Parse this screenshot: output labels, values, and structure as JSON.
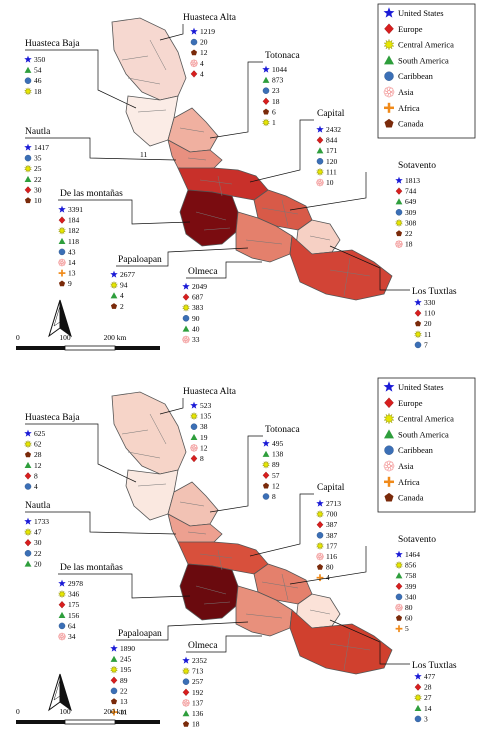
{
  "legend": [
    {
      "label": "United States",
      "icon": "star-icon",
      "color": "#1a1ad6"
    },
    {
      "label": "Europe",
      "icon": "diamond-icon",
      "color": "#d81e1e"
    },
    {
      "label": "Central America",
      "icon": "sunburst-icon",
      "color": "#e6e600"
    },
    {
      "label": "South America",
      "icon": "triangle-icon",
      "color": "#2e9e3c"
    },
    {
      "label": "Caribbean",
      "icon": "circle-icon",
      "color": "#3b6fb6"
    },
    {
      "label": "Asia",
      "icon": "flower-icon",
      "color": "#f4a6a6"
    },
    {
      "label": "Africa",
      "icon": "cross-icon",
      "color": "#f08a1a"
    },
    {
      "label": "Canada",
      "icon": "pentagon-icon",
      "color": "#7a2a0a"
    }
  ],
  "scale_bar": {
    "ticks": [
      "0",
      "100",
      "200 km"
    ]
  },
  "map_marker": "11",
  "panels": [
    {
      "regions": [
        {
          "name": "Huasteca Baja",
          "items": [
            [
              "star",
              "350"
            ],
            [
              "triangle",
              "54"
            ],
            [
              "circle",
              "46"
            ],
            [
              "sun",
              "18"
            ]
          ]
        },
        {
          "name": "Huasteca Alta",
          "items": [
            [
              "star",
              "1219"
            ],
            [
              "circle",
              "20"
            ],
            [
              "pentagon",
              "12"
            ],
            [
              "flower",
              "4"
            ],
            [
              "diamond",
              "4"
            ]
          ]
        },
        {
          "name": "Totonaca",
          "items": [
            [
              "star",
              "1044"
            ],
            [
              "triangle",
              "873"
            ],
            [
              "circle",
              "23"
            ],
            [
              "diamond",
              "18"
            ],
            [
              "pentagon",
              "6"
            ],
            [
              "sun",
              "1"
            ]
          ]
        },
        {
          "name": "Capital",
          "items": [
            [
              "star",
              "2432"
            ],
            [
              "diamond",
              "844"
            ],
            [
              "triangle",
              "171"
            ],
            [
              "circle",
              "120"
            ],
            [
              "sun",
              "111"
            ],
            [
              "flower",
              "10"
            ]
          ]
        },
        {
          "name": "Nautla",
          "items": [
            [
              "star",
              "1417"
            ],
            [
              "circle",
              "35"
            ],
            [
              "sun",
              "25"
            ],
            [
              "triangle",
              "22"
            ],
            [
              "diamond",
              "30"
            ],
            [
              "pentagon",
              "10"
            ]
          ]
        },
        {
          "name": "Sotavento",
          "items": [
            [
              "star",
              "1813"
            ],
            [
              "diamond",
              "744"
            ],
            [
              "triangle",
              "649"
            ],
            [
              "circle",
              "309"
            ],
            [
              "sun",
              "308"
            ],
            [
              "pentagon",
              "22"
            ],
            [
              "flower",
              "18"
            ]
          ]
        },
        {
          "name": "De las montañas",
          "items": [
            [
              "star",
              "3391"
            ],
            [
              "diamond",
              "184"
            ],
            [
              "sun",
              "182"
            ],
            [
              "triangle",
              "118"
            ],
            [
              "circle",
              "43"
            ],
            [
              "flower",
              "14"
            ],
            [
              "cross",
              "13"
            ],
            [
              "pentagon",
              "9"
            ]
          ]
        },
        {
          "name": "Papaloapan",
          "items": [
            [
              "star",
              "2677"
            ],
            [
              "sun",
              "94"
            ],
            [
              "triangle",
              "4"
            ],
            [
              "pentagon",
              "2"
            ]
          ]
        },
        {
          "name": "Olmeca",
          "items": [
            [
              "star",
              "2049"
            ],
            [
              "diamond",
              "687"
            ],
            [
              "sun",
              "383"
            ],
            [
              "circle",
              "90"
            ],
            [
              "triangle",
              "40"
            ],
            [
              "flower",
              "33"
            ]
          ]
        },
        {
          "name": "Los Tuxtlas",
          "items": [
            [
              "star",
              "330"
            ],
            [
              "diamond",
              "110"
            ],
            [
              "pentagon",
              "20"
            ],
            [
              "sun",
              "11"
            ],
            [
              "circle",
              "7"
            ]
          ]
        }
      ]
    },
    {
      "regions": [
        {
          "name": "Huasteca Baja",
          "items": [
            [
              "star",
              "625"
            ],
            [
              "sun",
              "62"
            ],
            [
              "pentagon",
              "28"
            ],
            [
              "triangle",
              "12"
            ],
            [
              "diamond",
              "8"
            ],
            [
              "circle",
              "4"
            ]
          ]
        },
        {
          "name": "Huasteca Alta",
          "items": [
            [
              "star",
              "523"
            ],
            [
              "sun",
              "135"
            ],
            [
              "circle",
              "38"
            ],
            [
              "triangle",
              "19"
            ],
            [
              "flower",
              "12"
            ],
            [
              "diamond",
              "8"
            ]
          ]
        },
        {
          "name": "Totonaca",
          "items": [
            [
              "star",
              "495"
            ],
            [
              "triangle",
              "138"
            ],
            [
              "sun",
              "89"
            ],
            [
              "diamond",
              "57"
            ],
            [
              "pentagon",
              "12"
            ],
            [
              "circle",
              "8"
            ]
          ]
        },
        {
          "name": "Capital",
          "items": [
            [
              "star",
              "2713"
            ],
            [
              "sun",
              "700"
            ],
            [
              "diamond",
              "387"
            ],
            [
              "circle",
              "387"
            ],
            [
              "sun",
              "177"
            ],
            [
              "flower",
              "116"
            ],
            [
              "pentagon",
              "80"
            ],
            [
              "cross",
              "4"
            ]
          ]
        },
        {
          "name": "Nautla",
          "items": [
            [
              "star",
              "1733"
            ],
            [
              "sun",
              "47"
            ],
            [
              "diamond",
              "30"
            ],
            [
              "circle",
              "22"
            ],
            [
              "triangle",
              "20"
            ]
          ]
        },
        {
          "name": "Sotavento",
          "items": [
            [
              "star",
              "1464"
            ],
            [
              "sun",
              "856"
            ],
            [
              "triangle",
              "758"
            ],
            [
              "diamond",
              "399"
            ],
            [
              "circle",
              "340"
            ],
            [
              "flower",
              "80"
            ],
            [
              "pentagon",
              "60"
            ],
            [
              "cross",
              "5"
            ]
          ]
        },
        {
          "name": "De las montañas",
          "items": [
            [
              "star",
              "2978"
            ],
            [
              "sun",
              "346"
            ],
            [
              "diamond",
              "175"
            ],
            [
              "triangle",
              "156"
            ],
            [
              "circle",
              "64"
            ],
            [
              "flower",
              "34"
            ]
          ]
        },
        {
          "name": "Papaloapan",
          "items": [
            [
              "star",
              "1890"
            ],
            [
              "triangle",
              "245"
            ],
            [
              "sun",
              "195"
            ],
            [
              "diamond",
              "89"
            ],
            [
              "circle",
              "22"
            ],
            [
              "pentagon",
              "13"
            ],
            [
              "cross",
              "11"
            ]
          ]
        },
        {
          "name": "Olmeca",
          "items": [
            [
              "star",
              "2352"
            ],
            [
              "sun",
              "713"
            ],
            [
              "circle",
              "257"
            ],
            [
              "diamond",
              "192"
            ],
            [
              "flower",
              "137"
            ],
            [
              "triangle",
              "136"
            ],
            [
              "pentagon",
              "18"
            ]
          ]
        },
        {
          "name": "Los Tuxtlas",
          "items": [
            [
              "star",
              "477"
            ],
            [
              "diamond",
              "28"
            ],
            [
              "sun",
              "27"
            ],
            [
              "triangle",
              "14"
            ],
            [
              "circle",
              "3"
            ]
          ]
        }
      ]
    }
  ]
}
